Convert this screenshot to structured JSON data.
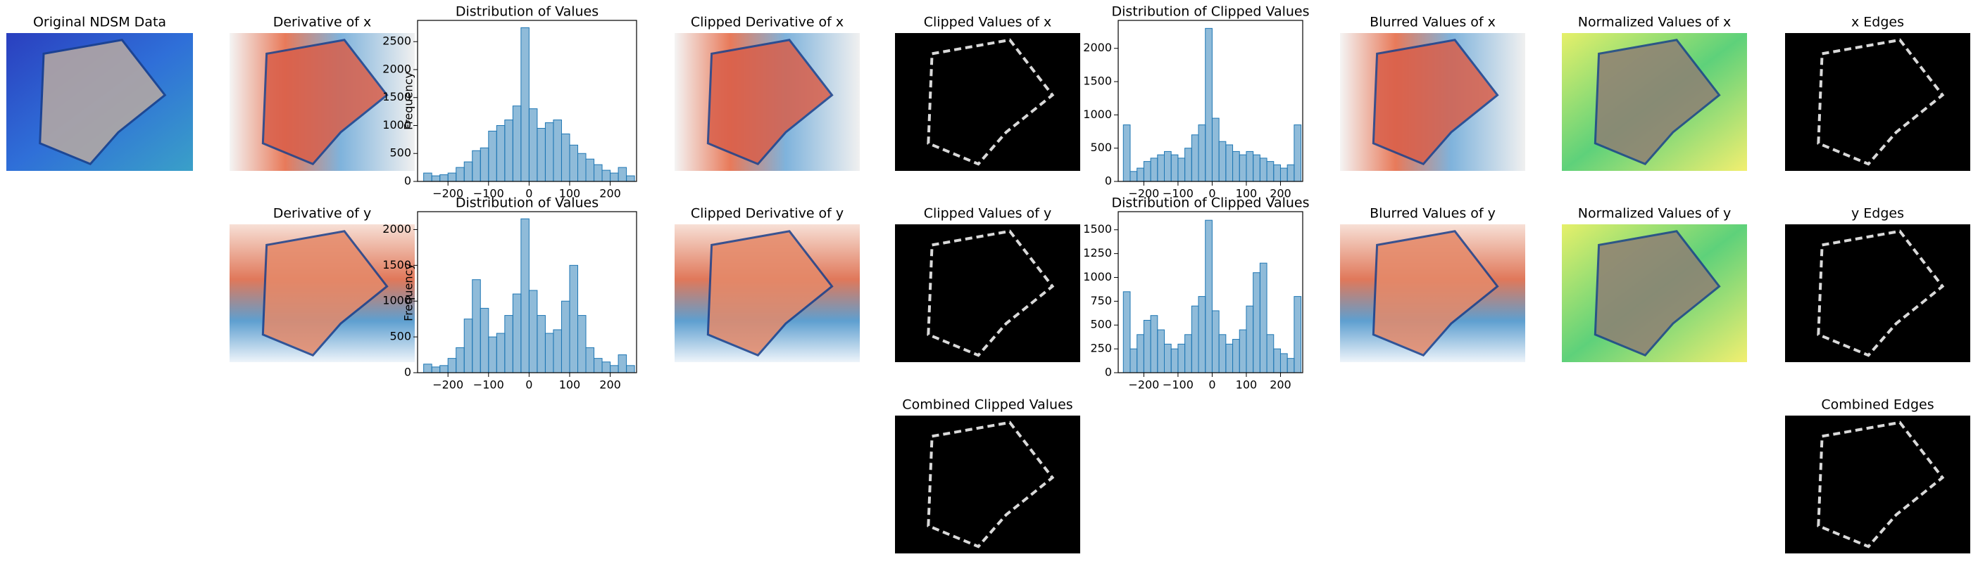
{
  "images": [
    {
      "title": "Original NDSM Data"
    },
    {
      "title": "Derivative of x"
    },
    {
      "title": "Clipped Derivative of x"
    },
    {
      "title": "Clipped Values  of x"
    },
    {
      "title": "Blurred Values of x"
    },
    {
      "title": "Normalized Values of x"
    },
    {
      "title": "x Edges"
    },
    {
      "title": "Derivative of y"
    },
    {
      "title": "Clipped Derivative of y"
    },
    {
      "title": "Clipped Values  of y"
    },
    {
      "title": "Blurred Values of y"
    },
    {
      "title": "Normalized Values of y"
    },
    {
      "title": "y Edges"
    },
    {
      "title": "Combined Clipped Values"
    },
    {
      "title": "Combined Edges"
    }
  ],
  "chart_data": [
    {
      "type": "histogram",
      "title": "Distribution of Values",
      "ylabel": "Frequency",
      "color": "#1f77b4",
      "bins": [
        -260,
        -240,
        -220,
        -200,
        -180,
        -160,
        -140,
        -120,
        -100,
        -80,
        -60,
        -40,
        -20,
        0,
        20,
        40,
        60,
        80,
        100,
        120,
        140,
        160,
        180,
        200,
        220,
        240,
        260
      ],
      "values": [
        150,
        100,
        120,
        150,
        250,
        350,
        550,
        600,
        900,
        1000,
        1100,
        1350,
        2750,
        1300,
        950,
        1050,
        1100,
        850,
        650,
        500,
        400,
        300,
        200,
        150,
        250,
        100
      ],
      "xlim": [
        -275,
        265
      ],
      "xticks": [
        {
          "value": -200,
          "label": "−200"
        },
        {
          "value": -100,
          "label": "−100"
        },
        0,
        100,
        200
      ],
      "ylim": [
        0,
        2880
      ],
      "yticks": [
        0,
        500,
        1000,
        1500,
        2000,
        2500
      ]
    },
    {
      "type": "histogram",
      "title": "Distribution of Values",
      "ylabel": "Frequency",
      "color": "#1f77b4",
      "bins": [
        -260,
        -240,
        -220,
        -200,
        -180,
        -160,
        -140,
        -120,
        -100,
        -80,
        -60,
        -40,
        -20,
        0,
        20,
        40,
        60,
        80,
        100,
        120,
        140,
        160,
        180,
        200,
        220,
        240,
        260
      ],
      "values": [
        120,
        80,
        100,
        200,
        350,
        750,
        1300,
        900,
        500,
        550,
        800,
        1100,
        2150,
        1150,
        800,
        550,
        600,
        1000,
        1500,
        800,
        350,
        200,
        150,
        100,
        250,
        100
      ],
      "xlim": [
        -275,
        265
      ],
      "xticks": [
        {
          "value": -200,
          "label": "−200"
        },
        {
          "value": -100,
          "label": "−100"
        },
        0,
        100,
        200
      ],
      "ylim": [
        0,
        2250
      ],
      "yticks": [
        0,
        500,
        1000,
        1500,
        2000
      ]
    },
    {
      "type": "histogram",
      "title": "Distribution of Clipped Values",
      "color": "#1f77b4",
      "bins": [
        -260,
        -240,
        -220,
        -200,
        -180,
        -160,
        -140,
        -120,
        -100,
        -80,
        -60,
        -40,
        -20,
        0,
        20,
        40,
        60,
        80,
        100,
        120,
        140,
        160,
        180,
        200,
        220,
        240,
        260
      ],
      "values": [
        850,
        150,
        200,
        300,
        350,
        400,
        450,
        400,
        350,
        500,
        700,
        850,
        2300,
        950,
        600,
        550,
        450,
        400,
        450,
        400,
        350,
        300,
        250,
        200,
        250,
        850
      ],
      "xlim": [
        -275,
        265
      ],
      "xticks": [
        {
          "value": -200,
          "label": "−200"
        },
        {
          "value": -100,
          "label": "−100"
        },
        0,
        100,
        200
      ],
      "ylim": [
        0,
        2420
      ],
      "yticks": [
        0,
        500,
        1000,
        1500,
        2000
      ]
    },
    {
      "type": "histogram",
      "title": "Distribution of Clipped Values",
      "color": "#1f77b4",
      "bins": [
        -260,
        -240,
        -220,
        -200,
        -180,
        -160,
        -140,
        -120,
        -100,
        -80,
        -60,
        -40,
        -20,
        0,
        20,
        40,
        60,
        80,
        100,
        120,
        140,
        160,
        180,
        200,
        220,
        240,
        260
      ],
      "values": [
        850,
        250,
        400,
        550,
        600,
        450,
        300,
        250,
        300,
        400,
        700,
        800,
        1600,
        650,
        400,
        300,
        350,
        450,
        700,
        1050,
        1150,
        400,
        250,
        200,
        150,
        800
      ],
      "xlim": [
        -275,
        265
      ],
      "xticks": [
        {
          "value": -200,
          "label": "−200"
        },
        {
          "value": -100,
          "label": "−100"
        },
        0,
        100,
        200
      ],
      "ylim": [
        0,
        1690
      ],
      "yticks": [
        0,
        250,
        500,
        750,
        1000,
        1250,
        1500
      ]
    }
  ]
}
